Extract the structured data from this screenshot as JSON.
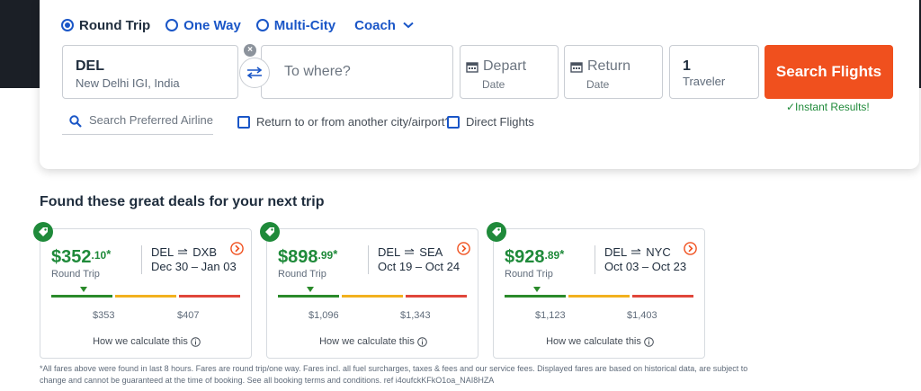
{
  "colors": {
    "accent_blue": "#1a56c7",
    "cta_orange": "#f0501e",
    "price_green": "#1f8a3a",
    "dark_band": "#1b1f26"
  },
  "trip_types": {
    "round_trip": "Round Trip",
    "one_way": "One Way",
    "multi_city": "Multi-City",
    "selected": "Round Trip"
  },
  "cabin": {
    "value": "Coach",
    "icon": "chevron-down-icon"
  },
  "from": {
    "code": "DEL",
    "name": "New Delhi IGI, India",
    "clear_icon": "close-icon",
    "swap_icon": "swap-icon"
  },
  "to": {
    "placeholder": "To where?"
  },
  "depart": {
    "label": "Depart",
    "sub": "Date",
    "icon": "calendar-icon"
  },
  "return": {
    "label": "Return",
    "sub": "Date",
    "icon": "calendar-icon"
  },
  "travelers": {
    "count": "1",
    "label": "Traveler"
  },
  "search_button": "Search Flights",
  "instant_results": "✓Instant Results!",
  "airline": {
    "placeholder": "Search Preferred Airline",
    "icon": "search-icon"
  },
  "options": {
    "return_other": "Return to or from another city/airport?",
    "direct": "Direct Flights"
  },
  "deals": {
    "title": "Found these great deals for your next trip",
    "calc_text": "How we calculate this",
    "round_trip_label": "Round Trip",
    "cards": [
      {
        "price_main": "$352",
        "price_cents": ".10",
        "star": "*",
        "origin": "DEL",
        "dest": "DXB",
        "dates": "Dec 30 – Jan 03",
        "low": "$353",
        "high": "$407"
      },
      {
        "price_main": "$898",
        "price_cents": ".99",
        "star": "*",
        "origin": "DEL",
        "dest": "SEA",
        "dates": "Oct 19 – Oct 24",
        "low": "$1,096",
        "high": "$1,343"
      },
      {
        "price_main": "$928",
        "price_cents": ".89",
        "star": "*",
        "origin": "DEL",
        "dest": "NYC",
        "dates": "Oct 03 – Oct 23",
        "low": "$1,123",
        "high": "$1,403"
      }
    ]
  },
  "footnote": "*All fares above were found in last 8 hours. Fares are round trip/one way. Fares incl. all fuel surcharges, taxes & fees and our service fees. Displayed fares are based on historical data, are subject to change and cannot be guaranteed at the time of booking. See all booking terms and conditions. ref i4oufckKFkO1oa_NAI8HZA"
}
